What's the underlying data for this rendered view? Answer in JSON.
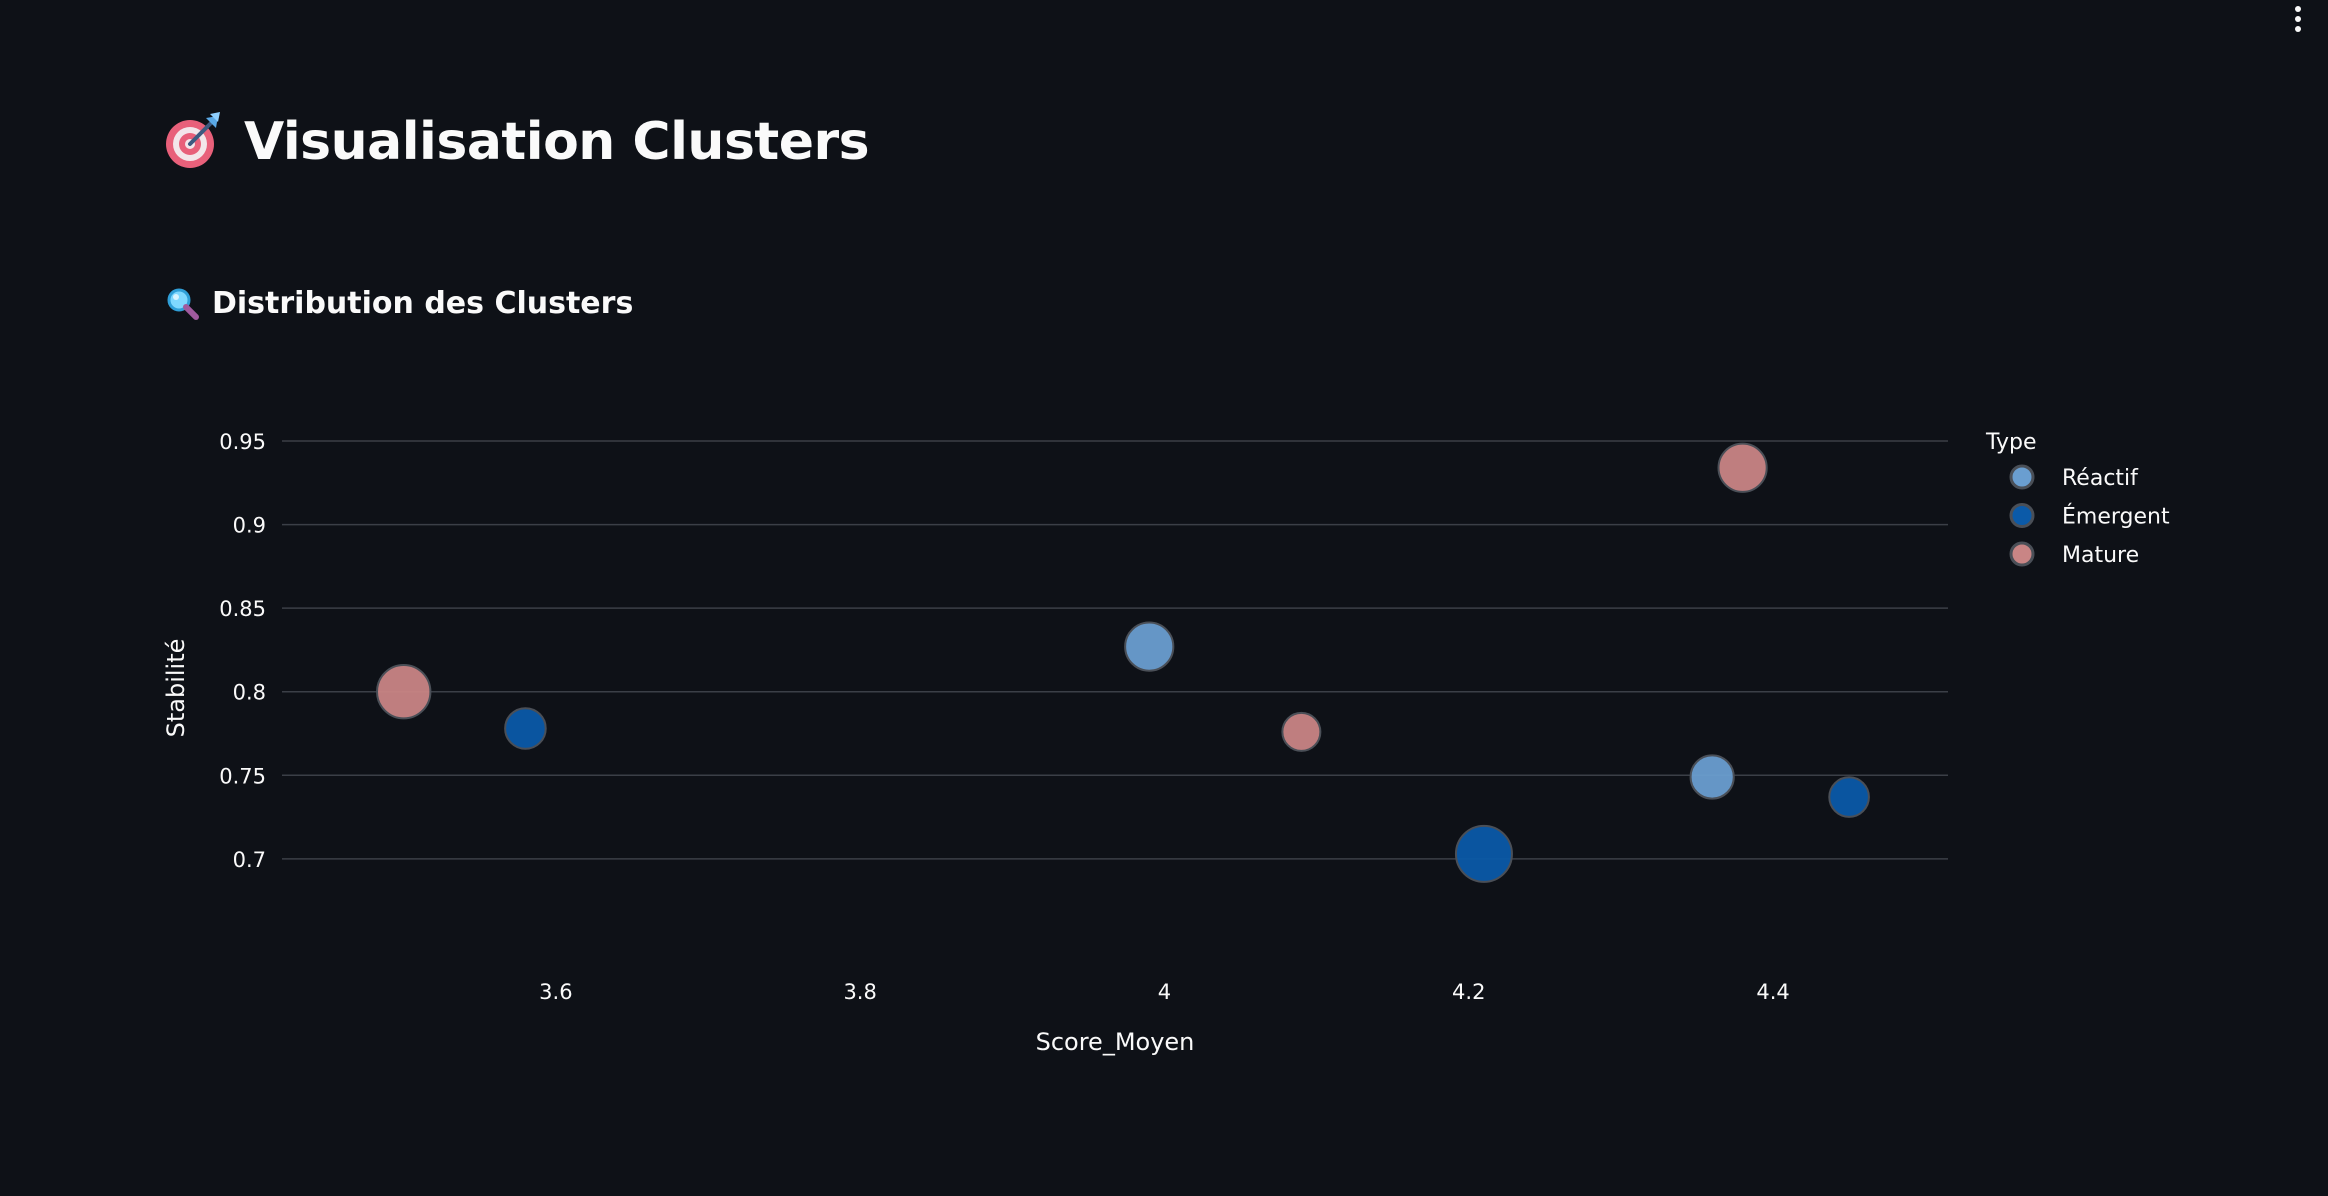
{
  "header": {
    "menu_icon": "more-vertical-icon"
  },
  "page": {
    "title_icon": "target-dart-icon",
    "title": "Visualisation Clusters",
    "section_icon": "magnifier-icon",
    "section_title": "Distribution des Clusters"
  },
  "chart_data": {
    "type": "scatter",
    "xlabel": "Score_Moyen",
    "ylabel": "Stabilité",
    "xlim": [
      3.42,
      4.515
    ],
    "ylim": [
      0.673,
      0.95
    ],
    "x_ticks": [
      3.6,
      3.8,
      4,
      4.2,
      4.4
    ],
    "x_tick_labels": [
      "3.6",
      "3.8",
      "4",
      "4.2",
      "4.4"
    ],
    "y_ticks": [
      0.7,
      0.75,
      0.8,
      0.85,
      0.9,
      0.95
    ],
    "y_tick_labels": [
      "0.7",
      "0.75",
      "0.8",
      "0.85",
      "0.9",
      "0.95"
    ],
    "grid": true,
    "legend_title": "Type",
    "legend_position": "top-right",
    "series": [
      {
        "name": "Réactif",
        "color": "#6a9ed0",
        "points": [
          {
            "x": 3.99,
            "y": 0.827,
            "size": 0.85
          },
          {
            "x": 4.36,
            "y": 0.749,
            "size": 0.75
          }
        ]
      },
      {
        "name": "Émergent",
        "color": "#0b5aa8",
        "points": [
          {
            "x": 3.58,
            "y": 0.778,
            "size": 0.7
          },
          {
            "x": 4.21,
            "y": 0.703,
            "size": 1.0
          },
          {
            "x": 4.45,
            "y": 0.737,
            "size": 0.68
          }
        ]
      },
      {
        "name": "Mature",
        "color": "#c98585",
        "points": [
          {
            "x": 3.5,
            "y": 0.8,
            "size": 0.95
          },
          {
            "x": 4.09,
            "y": 0.776,
            "size": 0.65
          },
          {
            "x": 4.38,
            "y": 0.934,
            "size": 0.85
          }
        ]
      }
    ]
  }
}
